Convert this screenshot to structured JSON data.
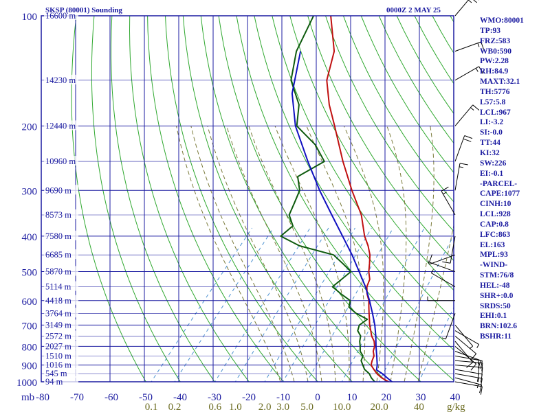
{
  "header": {
    "station": "SKSP (80001) Sounding",
    "time": "0000Z  2 MAY 25"
  },
  "indices": [
    "WMO:80001",
    "TP:93",
    "FRZ:583",
    "WB0:590",
    "PW:2.28",
    "RH:84.9",
    "MAXT:32.1",
    "TH:5776",
    "L57:5.8",
    "LCL:967",
    "LI:-3.2",
    "SI:-0.0",
    "TT:44",
    "KI:32",
    "SW:226",
    "EI:-0.1",
    "-PARCEL-",
    "CAPE:1077",
    "CINH:10",
    "LCL:928",
    "CAP:0.8",
    "LFC:863",
    "EL:163",
    "MPL:93",
    "-WIND-",
    "STM:76/8",
    "HEL:-48",
    "SHR+:0.0",
    "SRDS:50",
    "EHI:0.1",
    "BRN:102.6",
    "BSHR:11"
  ],
  "colors": {
    "frame": "#1a1aa0",
    "dry_adiabat": "#2fa82f",
    "moist_adiabat": "#7a7a3a",
    "mixing_ratio": "#4a90d0",
    "temperature": "#c01010",
    "dewpoint": "#0d5a0d",
    "parcel": "#1010c0",
    "wind_barb": "#000000",
    "height_label": "#1a1aa0",
    "mixing_label": "#6b6b20"
  },
  "chart_data": {
    "type": "skew-t log-p",
    "title": "SKSP (80001) Sounding",
    "pressure_axis": {
      "unit_label": "mb",
      "scale": "log",
      "range": [
        1000,
        100
      ],
      "ticks": [
        "100",
        "200",
        "300",
        "400",
        "500",
        "600",
        "700",
        "800",
        "900",
        "1000"
      ]
    },
    "temperature_axis": {
      "range": [
        -80,
        40
      ],
      "ticks": [
        "-80",
        "-70",
        "-60",
        "-50",
        "-40",
        "-30",
        "-20",
        "-10",
        "0",
        "10",
        "20",
        "30",
        "40"
      ]
    },
    "mixing_ratio_axis": {
      "unit_label": "g/kg",
      "ticks": [
        "0.1",
        "0.2",
        "0.6",
        "1.0",
        "2.0",
        "3.0",
        "5.0",
        "10.0",
        "20.0",
        "40"
      ]
    },
    "height_labels": [
      {
        "p": 100,
        "label": "16600 m"
      },
      {
        "p": 150,
        "label": "14230 m"
      },
      {
        "p": 200,
        "label": "12440 m"
      },
      {
        "p": 250,
        "label": "10960 m"
      },
      {
        "p": 300,
        "label": "9690 m"
      },
      {
        "p": 350,
        "label": "8573 m"
      },
      {
        "p": 400,
        "label": "7580 m"
      },
      {
        "p": 450,
        "label": "6685 m"
      },
      {
        "p": 500,
        "label": "5870 m"
      },
      {
        "p": 550,
        "label": "5114 m"
      },
      {
        "p": 600,
        "label": "4418 m"
      },
      {
        "p": 650,
        "label": "3764 m"
      },
      {
        "p": 700,
        "label": "3149 m"
      },
      {
        "p": 750,
        "label": "2572 m"
      },
      {
        "p": 800,
        "label": "2027 m"
      },
      {
        "p": 850,
        "label": "1510 m"
      },
      {
        "p": 900,
        "label": "1016 m"
      },
      {
        "p": 950,
        "label": "545 m"
      },
      {
        "p": 1000,
        "label": "94 m"
      }
    ],
    "series": [
      {
        "name": "temperature",
        "points": [
          [
            1005,
            28.6
          ],
          [
            1000,
            27.4
          ],
          [
            975,
            24.4
          ],
          [
            950,
            22.0
          ],
          [
            925,
            20.1
          ],
          [
            900,
            18.2
          ],
          [
            875,
            17.4
          ],
          [
            850,
            16.8
          ],
          [
            825,
            15.4
          ],
          [
            800,
            14.6
          ],
          [
            775,
            13.2
          ],
          [
            750,
            11.2
          ],
          [
            725,
            9.6
          ],
          [
            700,
            7.9
          ],
          [
            675,
            6.4
          ],
          [
            650,
            4.8
          ],
          [
            625,
            3.2
          ],
          [
            600,
            1.6
          ],
          [
            575,
            -0.6
          ],
          [
            550,
            -2.4
          ],
          [
            525,
            -3.4
          ],
          [
            500,
            -5.6
          ],
          [
            475,
            -7.4
          ],
          [
            450,
            -9.4
          ],
          [
            425,
            -12.2
          ],
          [
            400,
            -15.6
          ],
          [
            350,
            -21.8
          ],
          [
            300,
            -30.6
          ],
          [
            250,
            -40.4
          ],
          [
            200,
            -51.6
          ],
          [
            175,
            -58.4
          ],
          [
            150,
            -65.2
          ],
          [
            125,
            -70.2
          ],
          [
            100,
            -80.0
          ]
        ]
      },
      {
        "name": "dewpoint",
        "points": [
          [
            1005,
            24.4
          ],
          [
            1000,
            23.4
          ],
          [
            975,
            21.4
          ],
          [
            950,
            19.8
          ],
          [
            925,
            17.4
          ],
          [
            900,
            15.8
          ],
          [
            875,
            14.2
          ],
          [
            850,
            13.6
          ],
          [
            825,
            11.6
          ],
          [
            800,
            10.4
          ],
          [
            775,
            9.0
          ],
          [
            750,
            8.0
          ],
          [
            725,
            5.8
          ],
          [
            700,
            4.9
          ],
          [
            675,
            5.8
          ],
          [
            650,
            1.0
          ],
          [
            625,
            -2.6
          ],
          [
            600,
            -3.8
          ],
          [
            575,
            -8.2
          ],
          [
            550,
            -12.4
          ],
          [
            500,
            -10.8
          ],
          [
            475,
            -15.2
          ],
          [
            450,
            -20.0
          ],
          [
            425,
            -32.2
          ],
          [
            400,
            -40.0
          ],
          [
            375,
            -39.0
          ],
          [
            350,
            -42.8
          ],
          [
            325,
            -44.2
          ],
          [
            300,
            -45.8
          ],
          [
            275,
            -49.8
          ],
          [
            250,
            -45.8
          ],
          [
            225,
            -52.6
          ],
          [
            200,
            -62.6
          ],
          [
            175,
            -67.2
          ],
          [
            150,
            -75.6
          ],
          [
            125,
            -81.2
          ],
          [
            100,
            -85.0
          ]
        ]
      },
      {
        "name": "parcel",
        "points": [
          [
            1005,
            28.9
          ],
          [
            975,
            26.0
          ],
          [
            950,
            23.6
          ],
          [
            928,
            21.0
          ],
          [
            900,
            20.0
          ],
          [
            850,
            17.6
          ],
          [
            800,
            15.0
          ],
          [
            750,
            12.4
          ],
          [
            700,
            9.4
          ],
          [
            650,
            5.8
          ],
          [
            600,
            1.8
          ],
          [
            550,
            -2.8
          ],
          [
            500,
            -8.4
          ],
          [
            450,
            -14.6
          ],
          [
            400,
            -22.0
          ],
          [
            350,
            -30.4
          ],
          [
            300,
            -40.0
          ],
          [
            250,
            -50.6
          ],
          [
            200,
            -63.0
          ],
          [
            163,
            -72.0
          ],
          [
            125,
            -80.0
          ]
        ]
      }
    ],
    "wind_barbs": [
      {
        "p": 1000,
        "dir": 100,
        "spd": 10
      },
      {
        "p": 975,
        "dir": 105,
        "spd": 15
      },
      {
        "p": 950,
        "dir": 100,
        "spd": 15
      },
      {
        "p": 925,
        "dir": 100,
        "spd": 20
      },
      {
        "p": 900,
        "dir": 95,
        "spd": 20
      },
      {
        "p": 875,
        "dir": 95,
        "spd": 15
      },
      {
        "p": 850,
        "dir": 100,
        "spd": 15
      },
      {
        "p": 825,
        "dir": 110,
        "spd": 10
      },
      {
        "p": 800,
        "dir": 130,
        "spd": 10
      },
      {
        "p": 775,
        "dir": 140,
        "spd": 10
      },
      {
        "p": 750,
        "dir": 130,
        "spd": 10
      },
      {
        "p": 725,
        "dir": 120,
        "spd": 5
      },
      {
        "p": 700,
        "dir": 140,
        "spd": 5
      },
      {
        "p": 650,
        "dir": 200,
        "spd": 5
      },
      {
        "p": 600,
        "dir": 270,
        "spd": 5
      },
      {
        "p": 550,
        "dir": 300,
        "spd": 5
      },
      {
        "p": 500,
        "dir": 290,
        "spd": 10
      },
      {
        "p": 450,
        "dir": 250,
        "spd": 5
      },
      {
        "p": 400,
        "dir": 190,
        "spd": 10
      },
      {
        "p": 350,
        "dir": 330,
        "spd": 15
      },
      {
        "p": 300,
        "dir": 10,
        "spd": 15
      },
      {
        "p": 250,
        "dir": 20,
        "spd": 20
      },
      {
        "p": 200,
        "dir": 40,
        "spd": 15
      },
      {
        "p": 150,
        "dir": 60,
        "spd": 15
      },
      {
        "p": 125,
        "dir": 70,
        "spd": 15
      },
      {
        "p": 100,
        "dir": 40,
        "spd": 25
      }
    ]
  }
}
